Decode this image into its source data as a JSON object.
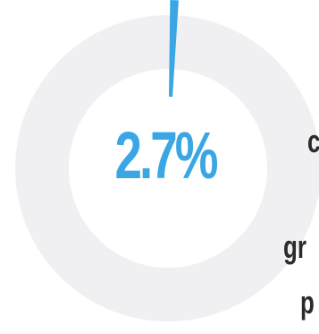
{
  "chart_data": {
    "type": "pie",
    "values": [
      2.7,
      97.3
    ],
    "value_label": "2.7%",
    "colors": {
      "highlight": "#3aa7e4",
      "remainder": "#f0f0f2"
    }
  },
  "side_text": {
    "line1": "c",
    "line2": "gr",
    "line3": "p"
  }
}
